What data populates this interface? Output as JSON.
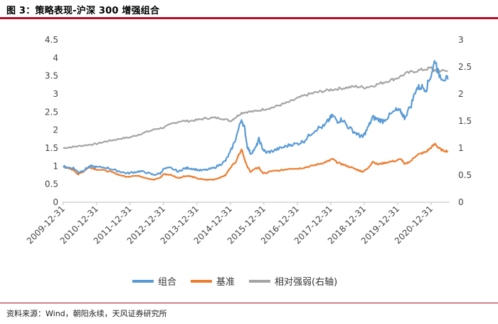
{
  "header": {
    "title": "图 3：策略表现-沪深 300 增强组合"
  },
  "footer": {
    "source": "资料来源：Wind，朝阳永续，天风证券研究所"
  },
  "chart_data": {
    "type": "line",
    "title": "图 3：策略表现-沪深 300 增强组合",
    "x_tick_labels": [
      "2009-12-31",
      "2010-12-31",
      "2011-12-31",
      "2012-12-31",
      "2013-12-31",
      "2014-12-31",
      "2015-12-31",
      "2016-12-31",
      "2017-12-31",
      "2018-12-31",
      "2019-12-31",
      "2020-12-31"
    ],
    "x_range": [
      2009.98,
      2021.55
    ],
    "y_left": {
      "ticks": [
        "0",
        "0.5",
        "1",
        "1.5",
        "2",
        "2.5",
        "3",
        "3.5",
        "4",
        "4.5"
      ],
      "ylim": [
        0,
        4.5
      ]
    },
    "y_right": {
      "ticks": [
        "0",
        "0.5",
        "1",
        "1.5",
        "2",
        "2.5",
        "3"
      ],
      "ylim": [
        0,
        3
      ]
    },
    "grid": false,
    "legend_position": "bottom-center",
    "series": [
      {
        "name": "组合",
        "axis": "left",
        "color": "#5b9bd5",
        "points": [
          [
            2010.0,
            1.0
          ],
          [
            2010.1,
            0.96
          ],
          [
            2010.3,
            0.95
          ],
          [
            2010.45,
            0.83
          ],
          [
            2010.6,
            0.88
          ],
          [
            2010.75,
            0.97
          ],
          [
            2010.85,
            1.0
          ],
          [
            2011.0,
            0.97
          ],
          [
            2011.3,
            0.96
          ],
          [
            2011.5,
            0.9
          ],
          [
            2011.7,
            0.85
          ],
          [
            2011.9,
            0.8
          ],
          [
            2012.1,
            0.83
          ],
          [
            2012.3,
            0.86
          ],
          [
            2012.5,
            0.82
          ],
          [
            2012.7,
            0.76
          ],
          [
            2012.9,
            0.8
          ],
          [
            2013.0,
            0.92
          ],
          [
            2013.2,
            0.95
          ],
          [
            2013.45,
            0.85
          ],
          [
            2013.6,
            0.93
          ],
          [
            2013.75,
            0.95
          ],
          [
            2013.9,
            0.92
          ],
          [
            2014.1,
            0.88
          ],
          [
            2014.3,
            0.9
          ],
          [
            2014.5,
            0.95
          ],
          [
            2014.7,
            1.05
          ],
          [
            2014.85,
            1.15
          ],
          [
            2015.0,
            1.4
          ],
          [
            2015.15,
            1.75
          ],
          [
            2015.33,
            2.3
          ],
          [
            2015.42,
            2.05
          ],
          [
            2015.5,
            1.55
          ],
          [
            2015.6,
            1.35
          ],
          [
            2015.75,
            1.5
          ],
          [
            2015.85,
            1.75
          ],
          [
            2015.95,
            1.5
          ],
          [
            2016.05,
            1.38
          ],
          [
            2016.2,
            1.4
          ],
          [
            2016.4,
            1.47
          ],
          [
            2016.6,
            1.53
          ],
          [
            2016.8,
            1.6
          ],
          [
            2017.0,
            1.62
          ],
          [
            2017.2,
            1.7
          ],
          [
            2017.4,
            1.9
          ],
          [
            2017.6,
            2.05
          ],
          [
            2017.8,
            2.1
          ],
          [
            2017.95,
            2.3
          ],
          [
            2018.05,
            2.4
          ],
          [
            2018.2,
            2.25
          ],
          [
            2018.35,
            2.3
          ],
          [
            2018.5,
            2.1
          ],
          [
            2018.7,
            1.95
          ],
          [
            2018.85,
            1.85
          ],
          [
            2018.95,
            1.8
          ],
          [
            2019.1,
            2.05
          ],
          [
            2019.25,
            2.35
          ],
          [
            2019.4,
            2.3
          ],
          [
            2019.55,
            2.25
          ],
          [
            2019.75,
            2.4
          ],
          [
            2019.95,
            2.55
          ],
          [
            2020.1,
            2.5
          ],
          [
            2020.2,
            2.35
          ],
          [
            2020.4,
            2.7
          ],
          [
            2020.55,
            3.15
          ],
          [
            2020.7,
            3.2
          ],
          [
            2020.85,
            3.15
          ],
          [
            2021.0,
            3.55
          ],
          [
            2021.12,
            3.95
          ],
          [
            2021.22,
            3.55
          ],
          [
            2021.35,
            3.45
          ],
          [
            2021.5,
            3.4
          ]
        ]
      },
      {
        "name": "基准",
        "axis": "left",
        "color": "#ed7d31",
        "points": [
          [
            2010.0,
            1.0
          ],
          [
            2010.1,
            0.95
          ],
          [
            2010.3,
            0.9
          ],
          [
            2010.45,
            0.77
          ],
          [
            2010.6,
            0.85
          ],
          [
            2010.75,
            0.97
          ],
          [
            2010.85,
            0.95
          ],
          [
            2011.0,
            0.91
          ],
          [
            2011.3,
            0.87
          ],
          [
            2011.5,
            0.82
          ],
          [
            2011.7,
            0.75
          ],
          [
            2011.9,
            0.7
          ],
          [
            2012.1,
            0.74
          ],
          [
            2012.3,
            0.72
          ],
          [
            2012.5,
            0.67
          ],
          [
            2012.7,
            0.62
          ],
          [
            2012.9,
            0.68
          ],
          [
            2013.0,
            0.78
          ],
          [
            2013.2,
            0.76
          ],
          [
            2013.45,
            0.67
          ],
          [
            2013.6,
            0.72
          ],
          [
            2013.75,
            0.73
          ],
          [
            2013.9,
            0.69
          ],
          [
            2014.1,
            0.64
          ],
          [
            2014.3,
            0.62
          ],
          [
            2014.5,
            0.63
          ],
          [
            2014.7,
            0.69
          ],
          [
            2014.85,
            0.75
          ],
          [
            2015.0,
            0.97
          ],
          [
            2015.15,
            1.12
          ],
          [
            2015.33,
            1.48
          ],
          [
            2015.42,
            1.2
          ],
          [
            2015.5,
            0.98
          ],
          [
            2015.6,
            0.85
          ],
          [
            2015.75,
            0.93
          ],
          [
            2015.85,
            0.96
          ],
          [
            2015.95,
            0.82
          ],
          [
            2016.05,
            0.8
          ],
          [
            2016.2,
            0.86
          ],
          [
            2016.4,
            0.87
          ],
          [
            2016.6,
            0.9
          ],
          [
            2016.8,
            0.94
          ],
          [
            2017.0,
            0.93
          ],
          [
            2017.2,
            0.96
          ],
          [
            2017.4,
            1.0
          ],
          [
            2017.6,
            1.05
          ],
          [
            2017.8,
            1.1
          ],
          [
            2017.95,
            1.15
          ],
          [
            2018.05,
            1.2
          ],
          [
            2018.2,
            1.1
          ],
          [
            2018.35,
            1.05
          ],
          [
            2018.5,
            1.0
          ],
          [
            2018.7,
            0.93
          ],
          [
            2018.85,
            0.88
          ],
          [
            2018.95,
            0.85
          ],
          [
            2019.1,
            0.93
          ],
          [
            2019.25,
            1.13
          ],
          [
            2019.4,
            1.05
          ],
          [
            2019.55,
            1.08
          ],
          [
            2019.75,
            1.12
          ],
          [
            2019.95,
            1.15
          ],
          [
            2020.1,
            1.2
          ],
          [
            2020.2,
            1.05
          ],
          [
            2020.4,
            1.15
          ],
          [
            2020.55,
            1.3
          ],
          [
            2020.7,
            1.35
          ],
          [
            2020.85,
            1.4
          ],
          [
            2021.0,
            1.52
          ],
          [
            2021.12,
            1.62
          ],
          [
            2021.22,
            1.5
          ],
          [
            2021.35,
            1.43
          ],
          [
            2021.5,
            1.42
          ]
        ]
      },
      {
        "name": "相对强弱(右轴)",
        "axis": "right",
        "color": "#a5a5a5",
        "points": [
          [
            2010.0,
            1.0
          ],
          [
            2010.25,
            1.02
          ],
          [
            2010.5,
            1.04
          ],
          [
            2010.75,
            1.06
          ],
          [
            2011.0,
            1.08
          ],
          [
            2011.25,
            1.12
          ],
          [
            2011.5,
            1.15
          ],
          [
            2011.75,
            1.18
          ],
          [
            2012.0,
            1.2
          ],
          [
            2012.25,
            1.25
          ],
          [
            2012.5,
            1.3
          ],
          [
            2012.75,
            1.35
          ],
          [
            2013.0,
            1.38
          ],
          [
            2013.25,
            1.45
          ],
          [
            2013.5,
            1.5
          ],
          [
            2013.75,
            1.5
          ],
          [
            2014.0,
            1.52
          ],
          [
            2014.25,
            1.55
          ],
          [
            2014.5,
            1.56
          ],
          [
            2014.75,
            1.55
          ],
          [
            2015.0,
            1.5
          ],
          [
            2015.15,
            1.57
          ],
          [
            2015.33,
            1.65
          ],
          [
            2015.5,
            1.67
          ],
          [
            2015.75,
            1.68
          ],
          [
            2016.0,
            1.72
          ],
          [
            2016.25,
            1.75
          ],
          [
            2016.5,
            1.8
          ],
          [
            2016.75,
            1.85
          ],
          [
            2017.0,
            1.92
          ],
          [
            2017.25,
            1.98
          ],
          [
            2017.5,
            2.02
          ],
          [
            2017.75,
            2.05
          ],
          [
            2018.0,
            2.08
          ],
          [
            2018.25,
            2.1
          ],
          [
            2018.5,
            2.12
          ],
          [
            2018.75,
            2.14
          ],
          [
            2019.0,
            2.12
          ],
          [
            2019.25,
            2.15
          ],
          [
            2019.5,
            2.2
          ],
          [
            2019.75,
            2.25
          ],
          [
            2020.0,
            2.3
          ],
          [
            2020.25,
            2.38
          ],
          [
            2020.5,
            2.42
          ],
          [
            2020.75,
            2.45
          ],
          [
            2021.0,
            2.48
          ],
          [
            2021.12,
            2.42
          ],
          [
            2021.25,
            2.43
          ],
          [
            2021.5,
            2.42
          ]
        ]
      }
    ]
  }
}
